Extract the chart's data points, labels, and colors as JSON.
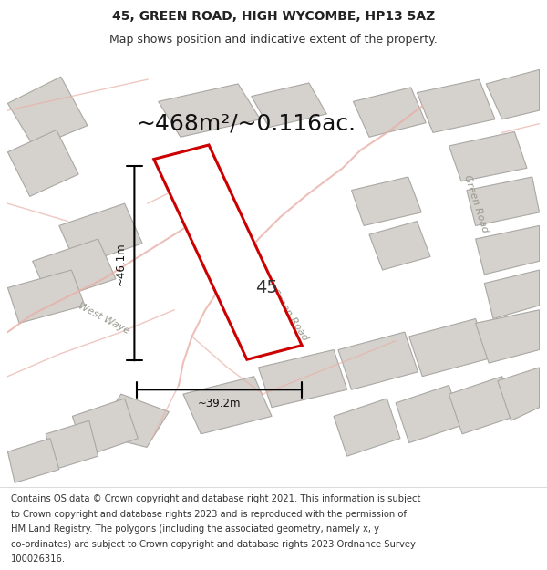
{
  "title_line1": "45, GREEN ROAD, HIGH WYCOMBE, HP13 5AZ",
  "title_line2": "Map shows position and indicative extent of the property.",
  "area_text": "~468m²/~0.116ac.",
  "width_label": "~39.2m",
  "height_label": "~46.1m",
  "property_number": "45",
  "footer_lines": [
    "Contains OS data © Crown copyright and database right 2021. This information is subject",
    "to Crown copyright and database rights 2023 and is reproduced with the permission of",
    "HM Land Registry. The polygons (including the associated geometry, namely x, y",
    "co-ordinates) are subject to Crown copyright and database rights 2023 Ordnance Survey",
    "100026316."
  ],
  "map_bg": "#eeece8",
  "property_fill": "#ffffff",
  "property_edge": "#cc0000",
  "building_fill": "#d5d2cd",
  "building_edge": "#aaa8a4",
  "road_color": "#e8b0a8",
  "title_fontsize": 10,
  "subtitle_fontsize": 9,
  "area_fontsize": 18,
  "label_fontsize": 8.5,
  "number_fontsize": 14,
  "footer_fontsize": 7.2,
  "road_label_fontsize": 8
}
